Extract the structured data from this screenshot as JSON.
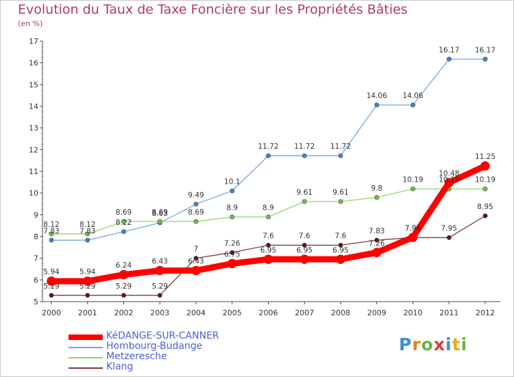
{
  "title": "Evolution du Taux de Taxe Foncière sur les Propriétés Bâties",
  "unit_label": "(en %)",
  "logo": {
    "letters": [
      {
        "ch": "P",
        "color": "#3a8fd0"
      },
      {
        "ch": "r",
        "color": "#e8801a"
      },
      {
        "ch": "o",
        "color": "#6cb33f"
      },
      {
        "ch": "x",
        "color": "#d93a3a"
      },
      {
        "ch": "i",
        "color": "#3a8fd0"
      },
      {
        "ch": "t",
        "color": "#e8a91a"
      },
      {
        "ch": "i",
        "color": "#6cb33f"
      }
    ]
  },
  "chart_data": {
    "type": "line",
    "title": "Evolution du Taux de Taxe Foncière sur les Propriétés Bâties",
    "ylabel": "(en %)",
    "xlabel": "",
    "x": [
      "2000",
      "2001",
      "2002",
      "2003",
      "2004",
      "2005",
      "2006",
      "2007",
      "2008",
      "2009",
      "2010",
      "2011",
      "2012"
    ],
    "ylim": [
      5,
      17
    ],
    "yticks": [
      5,
      6,
      7,
      8,
      9,
      10,
      11,
      12,
      13,
      14,
      15,
      16,
      17
    ],
    "grid": false,
    "legend_position": "bottom-left",
    "series": [
      {
        "name": "KéDANGE-SUR-CANNER",
        "color": "#ff0000",
        "marker": "#ff0000",
        "width": 9,
        "values": [
          5.94,
          5.94,
          6.24,
          6.43,
          6.43,
          6.75,
          6.95,
          6.95,
          6.95,
          7.26,
          7.96,
          10.48,
          11.25
        ],
        "labels": [
          "5.94",
          "5.94",
          "6.24",
          "6.43",
          "6.43",
          "6.75",
          "6.95",
          "6.95",
          "6.95",
          "7.26",
          "7.96",
          "10.48",
          "11.25"
        ]
      },
      {
        "name": "Hombourg-Budange",
        "color": "#6fa8dc",
        "marker": "#3d85c6",
        "width": 1.3,
        "values": [
          7.83,
          7.83,
          8.22,
          8.63,
          9.49,
          10.1,
          11.72,
          11.72,
          11.72,
          14.06,
          14.06,
          16.17,
          16.17
        ],
        "labels": [
          "7.83",
          "7.83",
          "8.22",
          "8.63",
          "9.49",
          "10.1",
          "11.72",
          "11.72",
          "11.72",
          "14.06",
          "14.06",
          "16.17",
          "16.17"
        ]
      },
      {
        "name": "Metzeresche",
        "color": "#93d46a",
        "marker": "#6cc04a",
        "width": 1.3,
        "values": [
          8.12,
          8.12,
          8.69,
          8.69,
          8.69,
          8.9,
          8.9,
          9.61,
          9.61,
          9.8,
          10.19,
          10.19,
          10.19
        ],
        "labels": [
          "8.12",
          "8.12",
          "8.69",
          "8.69",
          "8.69",
          "8.9",
          "8.9",
          "9.61",
          "9.61",
          "9.8",
          "10.19",
          "10.19",
          "10.19"
        ]
      },
      {
        "name": "Klang",
        "color": "#7a3b3b",
        "marker": "#5a1a1a",
        "width": 1.3,
        "values": [
          5.29,
          5.29,
          5.29,
          5.29,
          7.0,
          7.26,
          7.6,
          7.6,
          7.6,
          7.83,
          7.95,
          7.95,
          8.95
        ],
        "labels": [
          "5.29",
          "5.29",
          "5.29",
          "5.29",
          "7",
          "7.26",
          "7.6",
          "7.6",
          "7.6",
          "7.83",
          "7.95",
          "7.95",
          "8.95"
        ]
      }
    ]
  }
}
